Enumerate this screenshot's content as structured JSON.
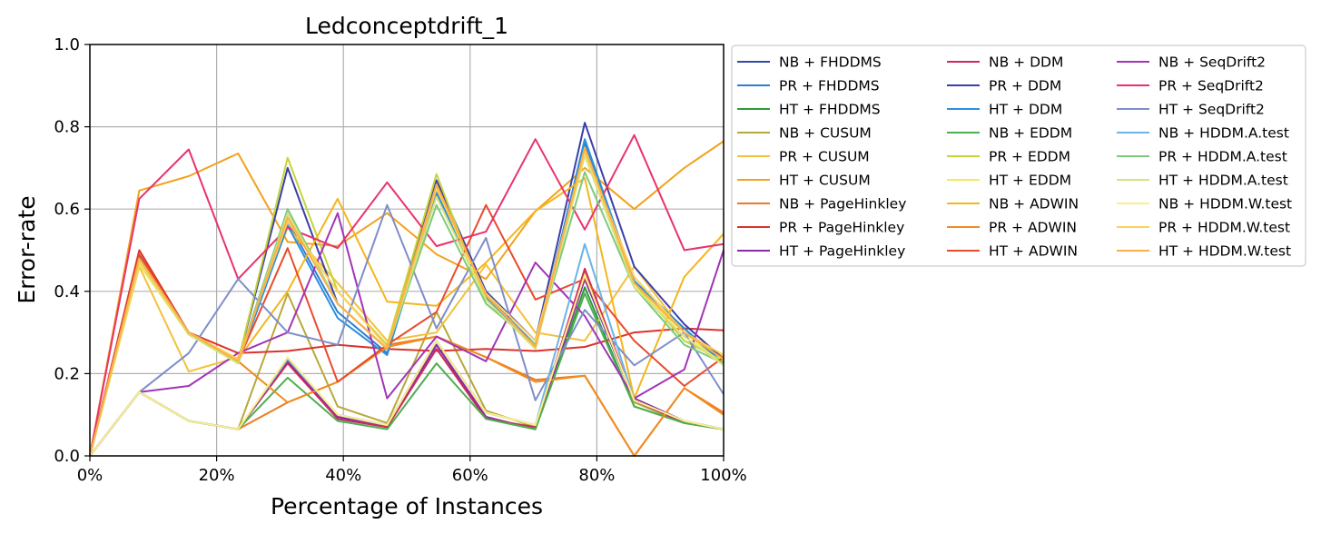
{
  "chart_data": {
    "type": "line",
    "title": "Ledconceptdrift_1",
    "xlabel": "Percentage of Instances",
    "ylabel": "Error-rate",
    "xlim": [
      0,
      100
    ],
    "ylim": [
      0,
      1.0
    ],
    "xticks": [
      0,
      20,
      40,
      60,
      80,
      100
    ],
    "xtick_labels": [
      "0%",
      "20%",
      "40%",
      "60%",
      "80%",
      "100%"
    ],
    "yticks": [
      0,
      0.2,
      0.4,
      0.6,
      0.8,
      1.0
    ],
    "ytick_labels": [
      "0.0",
      "0.2",
      "0.4",
      "0.6",
      "0.8",
      "1.0"
    ],
    "grid": true,
    "legend_position": "outside-right",
    "x": [
      0,
      7.8,
      15.6,
      23.4,
      31.2,
      39.1,
      46.9,
      54.7,
      62.5,
      70.3,
      78.1,
      85.9,
      93.8,
      100
    ],
    "series": [
      {
        "name": "NB + FHDDMS",
        "color": "#3249a8",
        "values": [
          0,
          0.155,
          0.085,
          0.065,
          0.235,
          0.1,
          0.075,
          0.28,
          0.105,
          0.075,
          0.43,
          0.135,
          0.085,
          0.065
        ]
      },
      {
        "name": "PR + FHDDMS",
        "color": "#2f7fd1",
        "values": [
          0,
          0.49,
          0.3,
          0.225,
          0.57,
          0.35,
          0.25,
          0.64,
          0.39,
          0.27,
          0.76,
          0.425,
          0.31,
          0.225
        ]
      },
      {
        "name": "HT + FHDDMS",
        "color": "#2e9a3a",
        "values": [
          0,
          0.155,
          0.085,
          0.065,
          0.23,
          0.09,
          0.07,
          0.27,
          0.09,
          0.065,
          0.41,
          0.12,
          0.08,
          0.065
        ]
      },
      {
        "name": "NB + CUSUM",
        "color": "#b8a83a",
        "values": [
          0,
          0.155,
          0.085,
          0.065,
          0.395,
          0.12,
          0.08,
          0.35,
          0.11,
          0.07,
          0.45,
          0.13,
          0.08,
          0.065
        ]
      },
      {
        "name": "PR + CUSUM",
        "color": "#f4c13a",
        "values": [
          0,
          0.46,
          0.205,
          0.24,
          0.555,
          0.42,
          0.28,
          0.3,
          0.465,
          0.3,
          0.28,
          0.46,
          0.3,
          0.24
        ]
      },
      {
        "name": "HT + CUSUM",
        "color": "#f2a21d",
        "values": [
          0,
          0.645,
          0.68,
          0.735,
          0.52,
          0.51,
          0.59,
          0.49,
          0.43,
          0.595,
          0.7,
          0.6,
          0.7,
          0.765
        ]
      },
      {
        "name": "NB + PageHinkley",
        "color": "#ee7a22",
        "values": [
          0,
          0.155,
          0.085,
          0.065,
          0.13,
          0.18,
          0.27,
          0.29,
          0.24,
          0.185,
          0.195,
          0.0,
          0.165,
          0.105
        ]
      },
      {
        "name": "PR + PageHinkley",
        "color": "#d9332a",
        "values": [
          0,
          0.5,
          0.3,
          0.25,
          0.255,
          0.27,
          0.26,
          0.255,
          0.26,
          0.255,
          0.265,
          0.3,
          0.31,
          0.305
        ]
      },
      {
        "name": "HT + PageHinkley",
        "color": "#8a2aa8",
        "values": [
          0,
          0.155,
          0.085,
          0.065,
          0.23,
          0.095,
          0.07,
          0.27,
          0.095,
          0.065,
          0.43,
          0.14,
          0.085,
          0.065
        ]
      },
      {
        "name": "NB + DDM",
        "color": "#cc2a5e",
        "values": [
          0,
          0.155,
          0.085,
          0.065,
          0.225,
          0.09,
          0.07,
          0.26,
          0.09,
          0.07,
          0.455,
          0.135,
          0.08,
          0.065
        ]
      },
      {
        "name": "PR + DDM",
        "color": "#3a3faa",
        "values": [
          0,
          0.485,
          0.3,
          0.23,
          0.7,
          0.37,
          0.26,
          0.67,
          0.4,
          0.28,
          0.81,
          0.46,
          0.32,
          0.235
        ]
      },
      {
        "name": "HT + DDM",
        "color": "#2a8fe0",
        "values": [
          0,
          0.48,
          0.3,
          0.225,
          0.56,
          0.335,
          0.245,
          0.635,
          0.385,
          0.265,
          0.77,
          0.425,
          0.31,
          0.22
        ]
      },
      {
        "name": "NB + EDDM",
        "color": "#4caf50",
        "values": [
          0,
          0.155,
          0.085,
          0.065,
          0.19,
          0.085,
          0.065,
          0.225,
          0.09,
          0.065,
          0.395,
          0.12,
          0.08,
          0.065
        ]
      },
      {
        "name": "PR + EDDM",
        "color": "#c5d43a",
        "values": [
          0,
          0.47,
          0.3,
          0.23,
          0.725,
          0.4,
          0.27,
          0.685,
          0.37,
          0.27,
          0.74,
          0.42,
          0.28,
          0.23
        ]
      },
      {
        "name": "HT + EDDM",
        "color": "#f7e85a",
        "values": [
          0,
          0.465,
          0.295,
          0.225,
          0.59,
          0.37,
          0.26,
          0.655,
          0.38,
          0.26,
          0.74,
          0.41,
          0.3,
          0.22
        ]
      },
      {
        "name": "NB + ADWIN",
        "color": "#f5b51c",
        "values": [
          0,
          0.47,
          0.3,
          0.235,
          0.4,
          0.625,
          0.375,
          0.365,
          0.47,
          0.595,
          0.675,
          0.14,
          0.435,
          0.54
        ]
      },
      {
        "name": "PR + ADWIN",
        "color": "#f08c1f",
        "values": [
          0,
          0.48,
          0.295,
          0.23,
          0.13,
          0.18,
          0.265,
          0.29,
          0.24,
          0.18,
          0.195,
          0.0,
          0.165,
          0.1
        ]
      },
      {
        "name": "HT + ADWIN",
        "color": "#ea4a2e",
        "values": [
          0,
          0.49,
          0.3,
          0.23,
          0.505,
          0.18,
          0.27,
          0.35,
          0.61,
          0.38,
          0.43,
          0.28,
          0.17,
          0.24
        ]
      },
      {
        "name": "NB + SeqDrift2",
        "color": "#a235b5",
        "values": [
          0,
          0.155,
          0.17,
          0.25,
          0.3,
          0.59,
          0.14,
          0.29,
          0.23,
          0.47,
          0.34,
          0.14,
          0.21,
          0.5
        ]
      },
      {
        "name": "PR + SeqDrift2",
        "color": "#e8336b",
        "values": [
          0,
          0.625,
          0.745,
          0.43,
          0.555,
          0.505,
          0.665,
          0.51,
          0.545,
          0.77,
          0.55,
          0.78,
          0.5,
          0.515
        ]
      },
      {
        "name": "HT + SeqDrift2",
        "color": "#7f8ec8",
        "values": [
          0,
          0.155,
          0.25,
          0.43,
          0.3,
          0.27,
          0.61,
          0.31,
          0.53,
          0.135,
          0.355,
          0.22,
          0.3,
          0.15
        ]
      },
      {
        "name": "NB + HDDM.A.test",
        "color": "#6ab4e6",
        "values": [
          0,
          0.155,
          0.085,
          0.065,
          0.235,
          0.1,
          0.075,
          0.28,
          0.105,
          0.075,
          0.515,
          0.135,
          0.085,
          0.065
        ]
      },
      {
        "name": "PR + HDDM.A.test",
        "color": "#7fc97f",
        "values": [
          0,
          0.48,
          0.3,
          0.23,
          0.6,
          0.37,
          0.26,
          0.61,
          0.37,
          0.27,
          0.69,
          0.41,
          0.27,
          0.225
        ]
      },
      {
        "name": "HT + HDDM.A.test",
        "color": "#d6e37a",
        "values": [
          0,
          0.47,
          0.295,
          0.225,
          0.59,
          0.37,
          0.26,
          0.63,
          0.38,
          0.26,
          0.73,
          0.41,
          0.29,
          0.22
        ]
      },
      {
        "name": "NB + HDDM.W.test",
        "color": "#fcef8a",
        "values": [
          0,
          0.155,
          0.085,
          0.065,
          0.24,
          0.1,
          0.075,
          0.28,
          0.105,
          0.075,
          0.44,
          0.135,
          0.085,
          0.065
        ]
      },
      {
        "name": "PR + HDDM.W.test",
        "color": "#fdd15a",
        "values": [
          0,
          0.475,
          0.3,
          0.235,
          0.57,
          0.4,
          0.265,
          0.65,
          0.395,
          0.28,
          0.74,
          0.435,
          0.3,
          0.245
        ]
      },
      {
        "name": "HT + HDDM.W.test",
        "color": "#fbb047",
        "values": [
          0,
          0.48,
          0.3,
          0.23,
          0.58,
          0.37,
          0.26,
          0.66,
          0.39,
          0.265,
          0.75,
          0.42,
          0.3,
          0.235
        ]
      }
    ]
  }
}
